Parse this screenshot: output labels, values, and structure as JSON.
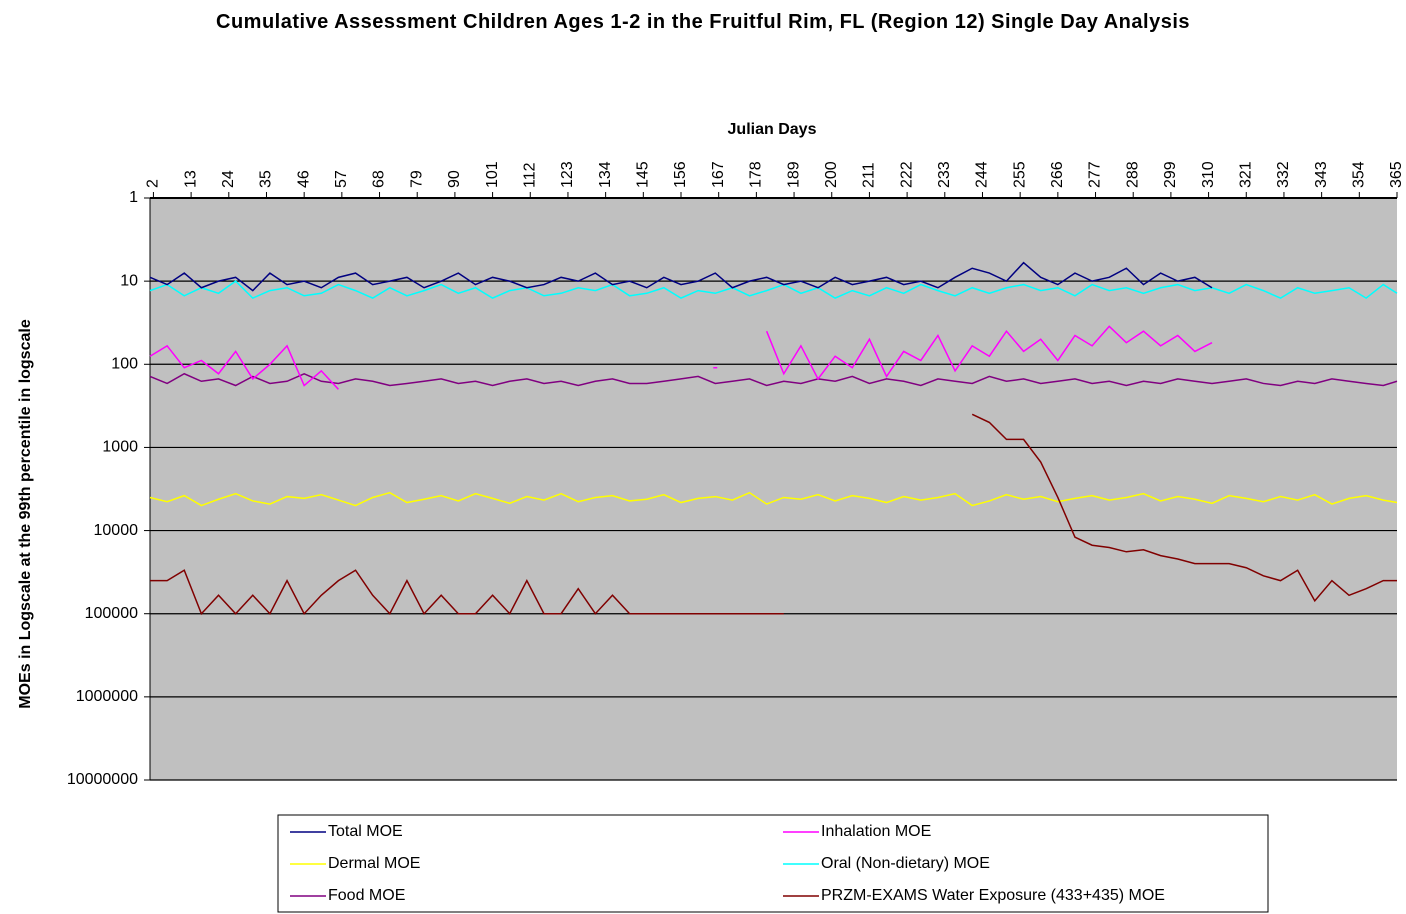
{
  "chart_data": {
    "type": "line",
    "title": "Cumulative Assessment Children Ages 1-2 in the Fruitful Rim, FL (Region 12) Single Day Analysis",
    "x_label": "Julian Days",
    "y_label": "MOEs in Logscale at the 99th percentile in logscale",
    "x": [
      1,
      6,
      11,
      16,
      21,
      26,
      31,
      36,
      41,
      46,
      51,
      56,
      61,
      66,
      71,
      76,
      81,
      86,
      91,
      96,
      101,
      106,
      111,
      116,
      121,
      126,
      131,
      136,
      141,
      146,
      151,
      156,
      161,
      166,
      171,
      176,
      181,
      186,
      191,
      196,
      201,
      206,
      211,
      216,
      221,
      226,
      231,
      236,
      241,
      246,
      251,
      256,
      261,
      266,
      271,
      276,
      281,
      286,
      291,
      296,
      301,
      306,
      311,
      316,
      321,
      326,
      331,
      336,
      341,
      346,
      351,
      356,
      361,
      365
    ],
    "xlim": [
      1,
      365
    ],
    "xticks": [
      2,
      13,
      24,
      35,
      46,
      57,
      68,
      79,
      90,
      101,
      112,
      123,
      134,
      145,
      156,
      167,
      178,
      189,
      200,
      211,
      222,
      233,
      244,
      255,
      266,
      277,
      288,
      299,
      310,
      321,
      332,
      343,
      354,
      365
    ],
    "ylim": [
      1,
      10000000
    ],
    "y_reversed": true,
    "log_scale": true,
    "yticks": [
      1,
      10,
      100,
      1000,
      10000,
      100000,
      1000000,
      10000000
    ],
    "grid": true,
    "plot_background": "#c0c0c0",
    "legend": "bottom",
    "series": [
      {
        "name": "Total MOE",
        "color": "#000080",
        "values": [
          9,
          11,
          8,
          12,
          10,
          9,
          13,
          8,
          11,
          10,
          12,
          9,
          8,
          11,
          10,
          9,
          12,
          10,
          8,
          11,
          9,
          10,
          12,
          11,
          9,
          10,
          8,
          11,
          10,
          12,
          9,
          11,
          10,
          8,
          12,
          10,
          9,
          11,
          10,
          12,
          9,
          11,
          10,
          9,
          11,
          10,
          12,
          9,
          7,
          8,
          10,
          6,
          9,
          11,
          8,
          10,
          9,
          7,
          11,
          8,
          10,
          9,
          12,
          null,
          null,
          null,
          null,
          null,
          null,
          null,
          null,
          null,
          null,
          null
        ]
      },
      {
        "name": "Inhalation MOE",
        "color": "#ff00ff",
        "values": [
          80,
          60,
          110,
          90,
          130,
          70,
          150,
          100,
          60,
          180,
          120,
          200,
          null,
          null,
          null,
          null,
          null,
          null,
          null,
          null,
          null,
          null,
          null,
          null,
          null,
          null,
          null,
          null,
          null,
          null,
          null,
          null,
          null,
          110,
          null,
          null,
          40,
          130,
          60,
          150,
          80,
          110,
          50,
          140,
          70,
          90,
          45,
          120,
          60,
          80,
          40,
          70,
          50,
          90,
          45,
          60,
          35,
          55,
          40,
          60,
          45,
          70,
          55,
          null,
          null,
          null,
          null,
          null,
          null,
          null,
          null,
          null,
          null,
          null
        ]
      },
      {
        "name": "Dermal MOE",
        "color": "#ffff00",
        "values": [
          4000,
          4500,
          3800,
          5000,
          4200,
          3600,
          4400,
          4800,
          3900,
          4100,
          3700,
          4300,
          5000,
          4000,
          3500,
          4600,
          4200,
          3800,
          4400,
          3600,
          4100,
          4700,
          3900,
          4300,
          3600,
          4500,
          4000,
          3800,
          4400,
          4200,
          3700,
          4600,
          4100,
          3900,
          4300,
          3500,
          4800,
          4000,
          4200,
          3700,
          4400,
          3800,
          4100,
          4600,
          3900,
          4300,
          4000,
          3600,
          5000,
          4400,
          3700,
          4200,
          3900,
          4500,
          4100,
          3800,
          4300,
          4000,
          3600,
          4400,
          3900,
          4200,
          4700,
          3800,
          4100,
          4500,
          3900,
          4300,
          3700,
          4800,
          4100,
          3800,
          4300,
          4600
        ]
      },
      {
        "name": "Oral (Non-dietary) MOE",
        "color": "#00ffff",
        "values": [
          13,
          11,
          15,
          12,
          14,
          10,
          16,
          13,
          12,
          15,
          14,
          11,
          13,
          16,
          12,
          15,
          13,
          11,
          14,
          12,
          16,
          13,
          12,
          15,
          14,
          12,
          13,
          11,
          15,
          14,
          12,
          16,
          13,
          14,
          12,
          15,
          13,
          11,
          14,
          12,
          16,
          13,
          15,
          12,
          14,
          11,
          13,
          15,
          12,
          14,
          12,
          11,
          13,
          12,
          15,
          11,
          13,
          12,
          14,
          12,
          11,
          13,
          12,
          14,
          11,
          13,
          16,
          12,
          14,
          13,
          12,
          16,
          11,
          14
        ]
      },
      {
        "name": "Food MOE",
        "color": "#800080",
        "values": [
          140,
          170,
          130,
          160,
          150,
          180,
          140,
          170,
          160,
          130,
          160,
          170,
          150,
          160,
          180,
          170,
          160,
          150,
          170,
          160,
          180,
          160,
          150,
          170,
          160,
          180,
          160,
          150,
          170,
          170,
          160,
          150,
          140,
          170,
          160,
          150,
          180,
          160,
          170,
          150,
          160,
          140,
          170,
          150,
          160,
          180,
          150,
          160,
          170,
          140,
          160,
          150,
          170,
          160,
          150,
          170,
          160,
          180,
          160,
          170,
          150,
          160,
          170,
          160,
          150,
          170,
          180,
          160,
          170,
          150,
          160,
          170,
          180,
          160
        ]
      },
      {
        "name": "PRZM-EXAMS Water Exposure (433+435) MOE",
        "color": "#800000",
        "values": [
          40000,
          40000,
          30000,
          100000,
          60000,
          100000,
          60000,
          100000,
          40000,
          100000,
          60000,
          40000,
          30000,
          60000,
          100000,
          40000,
          100000,
          60000,
          100000,
          100000,
          60000,
          100000,
          40000,
          100000,
          100000,
          50000,
          100000,
          60000,
          100000,
          100000,
          100000,
          100000,
          100000,
          100000,
          100000,
          100000,
          100000,
          100000,
          null,
          null,
          null,
          null,
          null,
          null,
          null,
          null,
          null,
          null,
          400,
          500,
          800,
          800,
          1500,
          4000,
          12000,
          15000,
          16000,
          18000,
          17000,
          20000,
          22000,
          25000,
          25000,
          25000,
          28000,
          35000,
          40000,
          30000,
          70000,
          40000,
          60000,
          50000,
          40000,
          40000
        ]
      }
    ]
  }
}
